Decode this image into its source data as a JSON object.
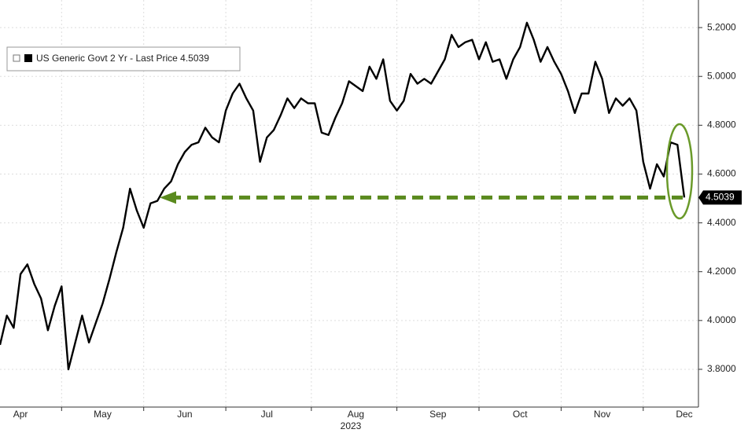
{
  "chart_data": {
    "type": "line",
    "xlabel": "2023",
    "categories": [
      null,
      null,
      null,
      "Apr",
      null,
      null,
      null,
      null,
      null,
      null,
      null,
      null,
      null,
      null,
      null,
      "May",
      null,
      null,
      null,
      null,
      null,
      null,
      null,
      null,
      null,
      null,
      null,
      "Jun",
      null,
      null,
      null,
      null,
      null,
      null,
      null,
      null,
      null,
      null,
      null,
      "Jul",
      null,
      null,
      null,
      null,
      null,
      null,
      null,
      null,
      null,
      null,
      null,
      null,
      "Aug",
      null,
      null,
      null,
      null,
      null,
      null,
      null,
      null,
      null,
      null,
      null,
      "Sep",
      null,
      null,
      null,
      null,
      null,
      null,
      null,
      null,
      null,
      null,
      null,
      "Oct",
      null,
      null,
      null,
      null,
      null,
      null,
      null,
      null,
      null,
      null,
      null,
      "Nov",
      null,
      null,
      null,
      null,
      null,
      null,
      null,
      null,
      null,
      null,
      null,
      "Dec"
    ],
    "series": [
      {
        "name": "US Generic Govt 2 Yr - Last Price 4.5039",
        "color": "#000000",
        "values": [
          3.9,
          4.02,
          3.97,
          4.19,
          4.23,
          4.15,
          4.09,
          3.96,
          4.06,
          4.14,
          3.8,
          3.91,
          4.02,
          3.91,
          3.99,
          4.07,
          4.17,
          4.28,
          4.38,
          4.54,
          4.45,
          4.38,
          4.48,
          4.49,
          4.54,
          4.57,
          4.64,
          4.69,
          4.72,
          4.73,
          4.79,
          4.75,
          4.73,
          4.86,
          4.93,
          4.97,
          4.91,
          4.86,
          4.65,
          4.75,
          4.78,
          4.84,
          4.91,
          4.87,
          4.91,
          4.89,
          4.89,
          4.77,
          4.76,
          4.83,
          4.89,
          4.98,
          4.96,
          4.94,
          5.04,
          4.99,
          5.07,
          4.9,
          4.86,
          4.9,
          5.01,
          4.97,
          4.99,
          4.97,
          5.02,
          5.07,
          5.17,
          5.12,
          5.14,
          5.15,
          5.07,
          5.14,
          5.06,
          5.07,
          4.99,
          5.07,
          5.12,
          5.22,
          5.15,
          5.06,
          5.12,
          5.06,
          5.01,
          4.94,
          4.85,
          4.93,
          4.93,
          5.06,
          4.99,
          4.85,
          4.91,
          4.88,
          4.91,
          4.86,
          4.65,
          4.54,
          4.64,
          4.59,
          4.73,
          4.72,
          4.5039
        ]
      }
    ],
    "ylim": [
      3.655,
      5.313
    ],
    "yticks": [
      {
        "value": 3.8,
        "label": "3.8000"
      },
      {
        "value": 4.0,
        "label": "4.0000"
      },
      {
        "value": 4.2,
        "label": "4.2000"
      },
      {
        "value": 4.4,
        "label": "4.4000"
      },
      {
        "value": 4.6,
        "label": "4.6000"
      },
      {
        "value": 4.8,
        "label": "4.8000"
      },
      {
        "value": 5.0,
        "label": "5.0000"
      },
      {
        "value": 5.2,
        "label": "5.2000"
      }
    ],
    "grid": true
  }
}
